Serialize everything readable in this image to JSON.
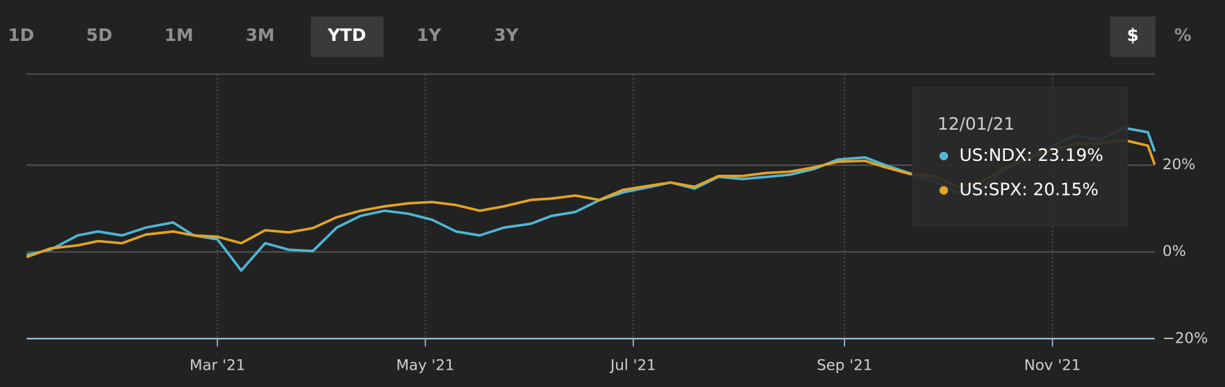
{
  "toolbar": {
    "ranges": [
      "1D",
      "5D",
      "1M",
      "3M",
      "YTD",
      "1Y",
      "3Y"
    ],
    "selected_range": "YTD",
    "units": [
      "$",
      "%"
    ],
    "selected_unit": "$"
  },
  "chart_data": {
    "type": "line",
    "x": [
      "01/04/21",
      "01/11/21",
      "01/19/21",
      "01/25/21",
      "02/01/21",
      "02/08/21",
      "02/16/21",
      "02/22/21",
      "03/01/21",
      "03/08/21",
      "03/15/21",
      "03/22/21",
      "03/29/21",
      "04/05/21",
      "04/12/21",
      "04/19/21",
      "04/26/21",
      "05/03/21",
      "05/10/21",
      "05/17/21",
      "05/24/21",
      "06/01/21",
      "06/07/21",
      "06/14/21",
      "06/21/21",
      "06/28/21",
      "07/06/21",
      "07/12/21",
      "07/19/21",
      "07/26/21",
      "08/02/21",
      "08/09/21",
      "08/16/21",
      "08/23/21",
      "08/30/21",
      "09/07/21",
      "09/13/21",
      "09/20/21",
      "09/27/21",
      "10/04/21",
      "10/11/21",
      "10/18/21",
      "10/25/21",
      "11/01/21",
      "11/08/21",
      "11/15/21",
      "11/22/21",
      "11/29/21",
      "12/01/21"
    ],
    "series": [
      {
        "name": "US:NDX",
        "color": "#4fb6d6",
        "values": [
          -0.7,
          0.5,
          3.8,
          4.7,
          3.8,
          5.6,
          6.8,
          3.8,
          2.9,
          -4.3,
          2.0,
          0.5,
          0.2,
          5.6,
          8.3,
          9.5,
          8.8,
          7.4,
          4.7,
          3.8,
          5.6,
          6.5,
          8.3,
          9.2,
          11.9,
          13.7,
          15.0,
          16.0,
          14.6,
          17.3,
          16.8,
          17.3,
          17.8,
          19.1,
          21.3,
          21.8,
          20.0,
          18.2,
          16.4,
          13.7,
          14.6,
          19.1,
          21.8,
          24.5,
          26.8,
          25.8,
          28.6,
          27.6,
          23.19
        ]
      },
      {
        "name": "US:SPX",
        "color": "#e2a423",
        "values": [
          -1.2,
          0.8,
          1.5,
          2.5,
          2.0,
          4.0,
          4.7,
          3.8,
          3.5,
          2.0,
          5.0,
          4.5,
          5.5,
          8.0,
          9.5,
          10.5,
          11.2,
          11.5,
          10.8,
          9.5,
          10.5,
          12.0,
          12.3,
          13.0,
          12.0,
          14.3,
          15.3,
          16.0,
          15.0,
          17.5,
          17.5,
          18.2,
          18.5,
          19.5,
          20.8,
          21.0,
          19.5,
          18.0,
          17.5,
          15.0,
          16.0,
          19.5,
          21.5,
          23.5,
          25.0,
          25.0,
          25.8,
          24.5,
          20.15
        ]
      }
    ],
    "xlim": [
      "01/04/21",
      "12/01/21"
    ],
    "xticks": [
      {
        "value": "03/01/21",
        "label": "Mar '21"
      },
      {
        "value": "05/01/21",
        "label": "May '21"
      },
      {
        "value": "07/01/21",
        "label": "Jul '21"
      },
      {
        "value": "09/01/21",
        "label": "Sep '21"
      },
      {
        "value": "11/01/21",
        "label": "Nov '21"
      }
    ],
    "ylim": [
      -20,
      41
    ],
    "yticks": [
      {
        "value": -20,
        "label": "−20%"
      },
      {
        "value": 0,
        "label": "0%"
      },
      {
        "value": 20,
        "label": "20%"
      }
    ],
    "grid": true,
    "tooltip": {
      "date": "12/01/21",
      "items": [
        "US:NDX: 23.19%",
        "US:SPX: 20.15%"
      ]
    }
  }
}
